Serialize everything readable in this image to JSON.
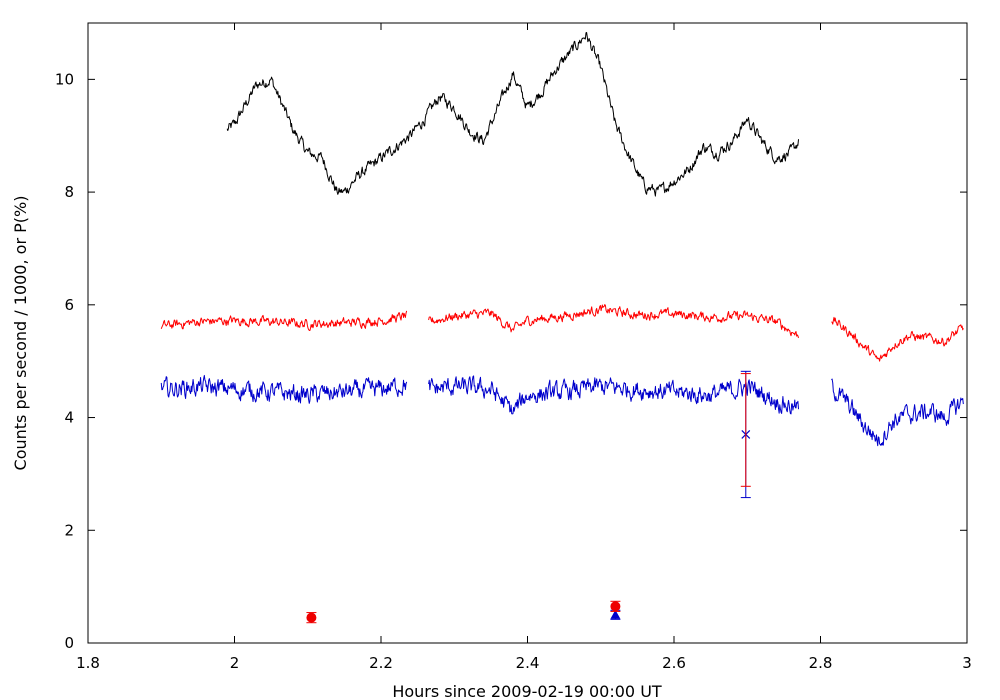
{
  "chart_data": {
    "type": "line",
    "title": "",
    "xlabel": "Hours since 2009-02-19 00:00 UT",
    "ylabel": "Counts per second / 1000, or P(%)",
    "xlim": [
      1.8,
      3.0
    ],
    "ylim": [
      0,
      11
    ],
    "xticks": [
      1.8,
      2,
      2.2,
      2.4,
      2.6,
      2.8,
      3
    ],
    "xtick_labels": [
      "1.8",
      "2",
      "2.2",
      "2.4",
      "2.6",
      "2.8",
      "3"
    ],
    "yticks": [
      0,
      2,
      4,
      6,
      8,
      10
    ],
    "ytick_labels": [
      "0",
      "2",
      "4",
      "6",
      "8",
      "10"
    ],
    "grid": false,
    "legend": "none",
    "series": [
      {
        "color": "#000000",
        "noise": 0.16,
        "segments": [
          {
            "x": [
              1.99,
              2.0,
              2.03,
              2.05,
              2.08,
              2.1,
              2.12,
              2.14,
              2.15,
              2.17,
              2.19,
              2.2,
              2.22,
              2.24,
              2.26,
              2.28,
              2.3,
              2.32,
              2.34,
              2.36,
              2.38,
              2.4,
              2.42,
              2.44,
              2.46,
              2.48,
              2.5,
              2.52,
              2.54,
              2.56,
              2.58,
              2.6,
              2.62,
              2.64,
              2.66,
              2.68,
              2.7,
              2.72,
              2.74,
              2.76,
              2.77
            ],
            "y": [
              9.1,
              9.2,
              9.9,
              10.0,
              9.1,
              8.7,
              8.6,
              8.0,
              8.0,
              8.3,
              8.5,
              8.6,
              8.8,
              9.0,
              9.3,
              9.7,
              9.5,
              9.1,
              8.9,
              9.5,
              10.1,
              9.5,
              9.8,
              10.2,
              10.5,
              10.8,
              10.2,
              9.2,
              8.6,
              8.1,
              8.0,
              8.2,
              8.4,
              8.8,
              8.7,
              8.9,
              9.3,
              8.9,
              8.6,
              8.7,
              8.9
            ]
          }
        ]
      },
      {
        "color": "#ff0000",
        "noise": 0.13,
        "segments": [
          {
            "x": [
              1.9,
              1.95,
              2.0,
              2.05,
              2.1,
              2.15,
              2.2,
              2.235
            ],
            "y": [
              5.62,
              5.7,
              5.72,
              5.7,
              5.66,
              5.68,
              5.72,
              5.8
            ]
          },
          {
            "x": [
              2.265,
              2.3,
              2.35,
              2.38,
              2.4,
              2.45,
              2.5,
              2.55,
              2.6,
              2.65,
              2.7,
              2.74,
              2.77
            ],
            "y": [
              5.7,
              5.8,
              5.85,
              5.55,
              5.72,
              5.8,
              5.92,
              5.82,
              5.84,
              5.78,
              5.8,
              5.7,
              5.45
            ]
          },
          {
            "x": [
              2.815,
              2.84,
              2.86,
              2.88,
              2.9,
              2.92,
              2.95,
              2.97,
              2.995
            ],
            "y": [
              5.75,
              5.5,
              5.25,
              5.0,
              5.3,
              5.45,
              5.4,
              5.35,
              5.6
            ]
          }
        ]
      },
      {
        "color": "#0000cc",
        "noise": 0.26,
        "segments": [
          {
            "x": [
              1.9,
              1.95,
              2.0,
              2.05,
              2.1,
              2.15,
              2.2,
              2.235
            ],
            "y": [
              4.5,
              4.55,
              4.5,
              4.45,
              4.4,
              4.45,
              4.5,
              4.6
            ]
          },
          {
            "x": [
              2.265,
              2.3,
              2.35,
              2.38,
              2.4,
              2.45,
              2.5,
              2.55,
              2.6,
              2.65,
              2.7,
              2.74,
              2.77
            ],
            "y": [
              4.5,
              4.55,
              4.5,
              4.1,
              4.4,
              4.45,
              4.55,
              4.5,
              4.45,
              4.4,
              4.55,
              4.3,
              4.15
            ]
          },
          {
            "x": [
              2.815,
              2.84,
              2.86,
              2.88,
              2.9,
              2.92,
              2.95,
              2.97,
              2.995
            ],
            "y": [
              4.55,
              4.2,
              3.85,
              3.6,
              3.95,
              4.05,
              4.1,
              4.0,
              4.3
            ]
          }
        ]
      }
    ],
    "points": [
      {
        "x": 2.105,
        "y": 0.45,
        "yerr": 0.09,
        "marker": "circle",
        "color": "#ee0000"
      },
      {
        "x": 2.52,
        "y": 0.5,
        "yerr": 0.08,
        "marker": "triangle",
        "color": "#0000cc"
      },
      {
        "x": 2.52,
        "y": 0.65,
        "yerr": 0.09,
        "marker": "circle",
        "color": "#ee0000"
      },
      {
        "x": 2.698,
        "y": 3.7,
        "ylow": 2.58,
        "yhigh": 4.82,
        "marker": "x",
        "color": "#0000cc"
      },
      {
        "x": 2.698,
        "y": 3.72,
        "ylow": 2.78,
        "yhigh": 4.78,
        "marker": "none",
        "color": "#ee0000"
      }
    ]
  }
}
